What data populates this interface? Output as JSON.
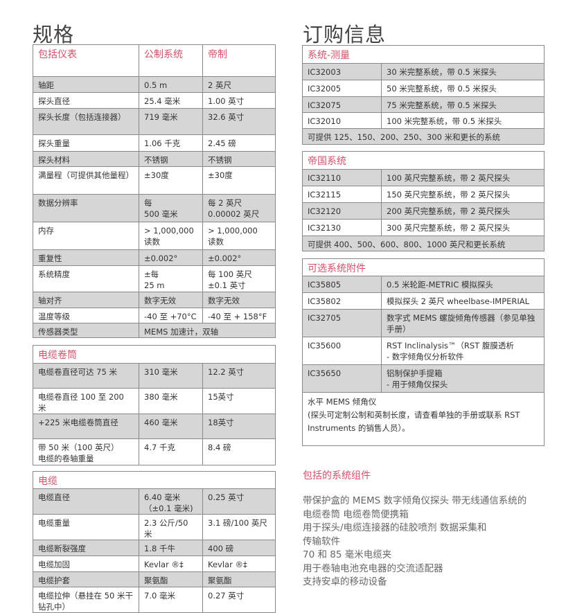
{
  "titles": {
    "spec": "规格",
    "order": "订购信息"
  },
  "instrument": {
    "headers": [
      "包括仪表",
      "公制系统",
      "帝制"
    ],
    "rows": [
      [
        "轴距",
        "0.5 m",
        "2 英尺"
      ],
      [
        "探头直径",
        "25.4 毫米",
        "1.00 英寸"
      ],
      [
        "探头长度（包括连接器）",
        "719 毫米",
        "32.6 英寸"
      ],
      [
        "探头重量",
        "1.06 千克",
        "2.45 磅"
      ],
      [
        "探头材料",
        "不锈钢",
        "不锈钢"
      ],
      [
        "满量程（可提供其他量程）",
        "±30度",
        "±30度"
      ],
      [
        "数据分辨率",
        "每\n500 毫米",
        "每 2 英尺 0.00002 英尺"
      ],
      [
        "内存",
        "> 1,000,000\n读数",
        "> 1,000,000\n读数"
      ],
      [
        "重复性",
        "±0.002°",
        "±0.002°"
      ],
      [
        "系统精度",
        "±每\n25 m",
        "每 100 英尺 ±0.1 英寸"
      ],
      [
        "轴对齐",
        "数字无效",
        "数字无效"
      ],
      [
        "温度等级",
        "-40 至 +70°C",
        "-40 至 + 158°F"
      ],
      [
        "传感器类型",
        "MEMS 加速计，双轴"
      ]
    ]
  },
  "reel": {
    "header": "电缆卷筒",
    "rows": [
      [
        "电缆卷直径可达 75 米",
        "310 毫米",
        "12.2 英寸"
      ],
      [
        "电缆卷直径 100 至 200 米",
        "380 毫米",
        "15英寸"
      ],
      [
        "+225 米电缆卷筒直径",
        "460 毫米",
        "18英寸"
      ],
      [
        "带 50 米（100 英尺）\n电缆的卷轴重量",
        "4.7 千克",
        "8.4 磅"
      ]
    ]
  },
  "cable": {
    "header": "电缆",
    "rows": [
      [
        "电缆直径",
        "6.40 毫米（±0.1 毫米)",
        "0.25 英寸"
      ],
      [
        "电缆重量",
        "2.3 公斤/50 米",
        "3.1 磅/100 英尺"
      ],
      [
        "电缆断裂强度",
        "1.8 千牛",
        "400 磅"
      ],
      [
        "电缆加固",
        "Kevlar ®‡",
        "Kevlar ®‡"
      ],
      [
        "电缆护套",
        "聚氨酯",
        "聚氨酯"
      ],
      [
        "电缆拉伸（悬挂在 50 米干钻孔中）",
        "7.0 毫米",
        "0.27 英寸"
      ]
    ]
  },
  "metric_systems": {
    "header": "系统-测量",
    "rows": [
      [
        "IC32003",
        "30 米完整系统，带 0.5 米探头"
      ],
      [
        "IC32005",
        "50 米完整系统，带 0.5 米探头"
      ],
      [
        "IC32075",
        "75 米完整系统，带 0.5 米探头"
      ],
      [
        "IC32010",
        "100 米完整系统，带 0.5 米探头"
      ]
    ],
    "footer": "可提供 125、150、200、250、300 米和更长的系统"
  },
  "imperial_systems": {
    "header": "帝国系统",
    "rows": [
      [
        "IC32110",
        "100 英尺完整系统，带 2 英尺探头"
      ],
      [
        "IC32115",
        "150 英尺完整系统，带 2 英尺探头"
      ],
      [
        "IC32120",
        "200 英尺完整系统，带 2 英尺探头"
      ],
      [
        "IC32130",
        "300 英尺完整系统，带 2 英尺探头"
      ]
    ],
    "footer": "可提供 400、500、600、800、1000 英尺和更长系统"
  },
  "accessories": {
    "header": "可选系统附件",
    "rows": [
      [
        "IC35805",
        "0.5 米轮距-METRIC 模拟探头"
      ],
      [
        "IC35802",
        "模拟探头 2 英尺 wheelbase-IMPERIAL"
      ],
      [
        "IC32705",
        "数字式 MEMS 螺旋倾角传感器（参见单独手册）"
      ],
      [
        "IC35600",
        "RST Inclinalysis™（RST 腹膜透析\n- 数字倾角仪分析软件"
      ],
      [
        "IC35650",
        "铝制保护手提箱\n- 用于倾角仪探头"
      ]
    ],
    "footer": "水平 MEMS 倾角仪\n(探头可定制公制和英制长度，请查看单独的手册或联系 RST Instruments 的销售人员）。"
  },
  "included": {
    "heading": "包括的系统组件",
    "lines": [
      "带保护盒的 MEMS 数字倾角仪探头 带无线通信系统的",
      "电缆卷筒 电缆卷筒便携箱",
      "用于探头/电缆连接器的硅胶喷剂 数据采集和",
      "传输软件",
      "70 和 85 毫米电缆夹",
      "用于卷轴电池充电器的交流适配器",
      "支持安卓的移动设备"
    ]
  },
  "colors": {
    "accent": "#d4506a",
    "row_shade": "#d6d6d6"
  }
}
